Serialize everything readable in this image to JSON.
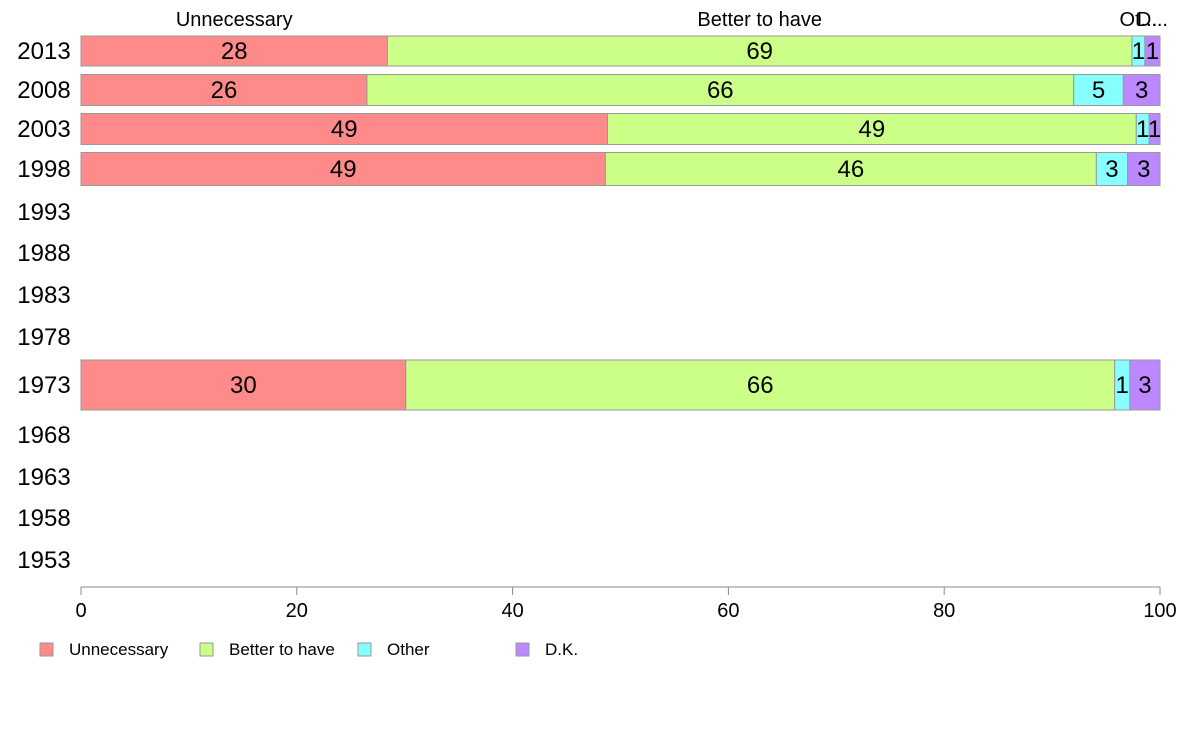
{
  "chart_data": {
    "type": "bar",
    "orientation": "horizontal",
    "stacked": true,
    "categories": [
      "2013",
      "2008",
      "2003",
      "1998",
      "1993",
      "1988",
      "1983",
      "1978",
      "1973",
      "1968",
      "1963",
      "1958",
      "1953"
    ],
    "series": [
      {
        "name": "Unnecessary",
        "header": "Unnecessary",
        "color": "#FF8A8A",
        "values": [
          28.4,
          26.5,
          48.8,
          48.6,
          null,
          null,
          null,
          null,
          30.1,
          null,
          null,
          null,
          null
        ],
        "labels": [
          "28",
          "26",
          "49",
          "49",
          "",
          "",
          "",
          "",
          "30",
          "",
          "",
          "",
          ""
        ]
      },
      {
        "name": "Better to have",
        "header": "Better to have",
        "color": "#CCFF88",
        "values": [
          69.0,
          65.5,
          49.0,
          45.5,
          null,
          null,
          null,
          null,
          65.7,
          null,
          null,
          null,
          null
        ],
        "labels": [
          "69",
          "66",
          "49",
          "46",
          "",
          "",
          "",
          "",
          "66",
          "",
          "",
          "",
          ""
        ]
      },
      {
        "name": "Other",
        "header": "Ot...",
        "color": "#88FFFF",
        "values": [
          1.2,
          4.6,
          1.2,
          2.9,
          null,
          null,
          null,
          null,
          1.4,
          null,
          null,
          null,
          null
        ],
        "labels": [
          "1",
          "5",
          "1",
          "3",
          "",
          "",
          "",
          "",
          "1",
          "",
          "",
          "",
          ""
        ]
      },
      {
        "name": "D.K.",
        "header": "D...",
        "color": "#BB88FF",
        "values": [
          1.4,
          3.4,
          1.0,
          3.0,
          null,
          null,
          null,
          null,
          2.8,
          null,
          null,
          null,
          null
        ],
        "labels": [
          "1",
          "3",
          "1",
          "3",
          "",
          "",
          "",
          "",
          "3",
          "",
          "",
          "",
          ""
        ]
      }
    ],
    "xlim": [
      0,
      100
    ],
    "xticks": [
      "0",
      "20",
      "40",
      "60",
      "80",
      "100"
    ],
    "title": "",
    "xlabel": "",
    "ylabel": "",
    "legend_position": "bottom-left",
    "grid": false,
    "bar_outline_color": "#999999",
    "axis_color": "#888888"
  }
}
